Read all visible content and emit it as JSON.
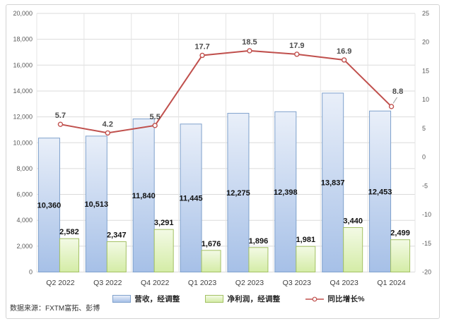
{
  "chart_data": {
    "type": "combo",
    "categories": [
      "Q2 2022",
      "Q3 2022",
      "Q4 2022",
      "Q1 2023",
      "Q2 2023",
      "Q3 2023",
      "Q4 2023",
      "Q1 2024"
    ],
    "series": [
      {
        "name": "营收，经调整",
        "type": "bar",
        "axis": "left",
        "values": [
          10360,
          10513,
          11840,
          11445,
          12275,
          12398,
          13837,
          12453
        ]
      },
      {
        "name": "净利润，经调整",
        "type": "bar",
        "axis": "left",
        "values": [
          2582,
          2347,
          3291,
          1676,
          1896,
          1981,
          3440,
          2499
        ]
      },
      {
        "name": "同比增长%",
        "type": "line",
        "axis": "right",
        "values": [
          5.7,
          4.2,
          5.5,
          17.7,
          18.5,
          17.9,
          16.9,
          8.8
        ]
      }
    ],
    "left_axis": {
      "min": 0,
      "max": 20000,
      "step": 2000,
      "tick_labels": [
        "0",
        "2,000",
        "4,000",
        "6,000",
        "8,000",
        "10,000",
        "12,000",
        "14,000",
        "16,000",
        "18,000",
        "20,000"
      ]
    },
    "right_axis": {
      "min": -20,
      "max": 25,
      "step": 5,
      "tick_labels": [
        "-20",
        "-15",
        "-10",
        "-5",
        "0",
        "5",
        "10",
        "15",
        "20",
        "25"
      ]
    },
    "grid": true,
    "legend_position": "bottom"
  },
  "colors": {
    "revenue_fill_top": "#E9EFF9",
    "revenue_fill_bottom": "#A6C0E7",
    "revenue_border": "#7FA1CC",
    "net_fill_top": "#F3FAE5",
    "net_fill_bottom": "#D4ECA6",
    "net_border": "#A3C163",
    "line": "#C0504D",
    "marker_fill": "#FFFFFF",
    "gridline": "#DBDBDB",
    "vertical_gridline": "#E4E4E4",
    "axis_text": "#595959",
    "category_text": "#404040",
    "bar_label_text": "#111111",
    "line_label_text": "#4D4D4D"
  },
  "footer": {
    "source_label": "数据来源：FXTM富拓、彭博"
  }
}
